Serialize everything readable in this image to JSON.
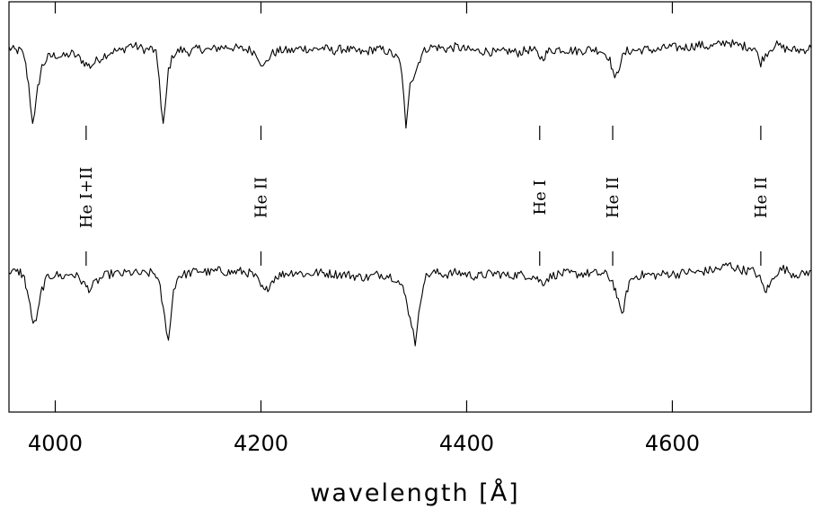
{
  "chart_data": {
    "type": "line",
    "title": "",
    "xlabel": "wavelength [Å]",
    "ylabel": "",
    "xlim": [
      3955,
      4735
    ],
    "ylim": [
      0,
      1
    ],
    "x_ticks": [
      4000,
      4200,
      4400,
      4600
    ],
    "grid": false,
    "series": [
      {
        "points": [
          [
            3955,
            0.887
          ],
          [
            3962,
            0.88
          ],
          [
            3966,
            0.882
          ],
          [
            3970,
            0.865
          ],
          [
            3974,
            0.8
          ],
          [
            3976,
            0.75
          ],
          [
            3978,
            0.71
          ],
          [
            3980,
            0.722
          ],
          [
            3983,
            0.79
          ],
          [
            3987,
            0.842
          ],
          [
            3993,
            0.865
          ],
          [
            4000,
            0.87
          ],
          [
            4008,
            0.866
          ],
          [
            4016,
            0.874
          ],
          [
            4024,
            0.862
          ],
          [
            4030,
            0.848
          ],
          [
            4034,
            0.843
          ],
          [
            4040,
            0.856
          ],
          [
            4048,
            0.87
          ],
          [
            4056,
            0.88
          ],
          [
            4064,
            0.88
          ],
          [
            4072,
            0.895
          ],
          [
            4080,
            0.89
          ],
          [
            4088,
            0.883
          ],
          [
            4094,
            0.886
          ],
          [
            4098,
            0.872
          ],
          [
            4101,
            0.82
          ],
          [
            4103,
            0.74
          ],
          [
            4105,
            0.7
          ],
          [
            4107,
            0.74
          ],
          [
            4110,
            0.835
          ],
          [
            4115,
            0.872
          ],
          [
            4122,
            0.883
          ],
          [
            4130,
            0.878
          ],
          [
            4140,
            0.886
          ],
          [
            4150,
            0.882
          ],
          [
            4160,
            0.889
          ],
          [
            4170,
            0.89
          ],
          [
            4180,
            0.885
          ],
          [
            4190,
            0.883
          ],
          [
            4196,
            0.873
          ],
          [
            4200,
            0.852
          ],
          [
            4202,
            0.838
          ],
          [
            4205,
            0.852
          ],
          [
            4210,
            0.873
          ],
          [
            4220,
            0.882
          ],
          [
            4230,
            0.88
          ],
          [
            4240,
            0.888
          ],
          [
            4250,
            0.883
          ],
          [
            4260,
            0.888
          ],
          [
            4270,
            0.88
          ],
          [
            4280,
            0.886
          ],
          [
            4290,
            0.88
          ],
          [
            4300,
            0.876
          ],
          [
            4310,
            0.885
          ],
          [
            4320,
            0.882
          ],
          [
            4328,
            0.872
          ],
          [
            4334,
            0.858
          ],
          [
            4337,
            0.83
          ],
          [
            4339,
            0.76
          ],
          [
            4341,
            0.685
          ],
          [
            4343,
            0.74
          ],
          [
            4345,
            0.808
          ],
          [
            4348,
            0.818
          ],
          [
            4352,
            0.842
          ],
          [
            4356,
            0.872
          ],
          [
            4362,
            0.888
          ],
          [
            4370,
            0.89
          ],
          [
            4380,
            0.885
          ],
          [
            4390,
            0.89
          ],
          [
            4400,
            0.883
          ],
          [
            4410,
            0.88
          ],
          [
            4420,
            0.88
          ],
          [
            4430,
            0.875
          ],
          [
            4440,
            0.88
          ],
          [
            4450,
            0.876
          ],
          [
            4460,
            0.883
          ],
          [
            4466,
            0.88
          ],
          [
            4470,
            0.87
          ],
          [
            4473,
            0.862
          ],
          [
            4476,
            0.87
          ],
          [
            4480,
            0.88
          ],
          [
            4490,
            0.885
          ],
          [
            4500,
            0.882
          ],
          [
            4510,
            0.88
          ],
          [
            4520,
            0.885
          ],
          [
            4530,
            0.882
          ],
          [
            4538,
            0.867
          ],
          [
            4542,
            0.835
          ],
          [
            4544,
            0.805
          ],
          [
            4546,
            0.822
          ],
          [
            4550,
            0.858
          ],
          [
            4556,
            0.88
          ],
          [
            4566,
            0.882
          ],
          [
            4576,
            0.884
          ],
          [
            4586,
            0.882
          ],
          [
            4596,
            0.89
          ],
          [
            4606,
            0.888
          ],
          [
            4616,
            0.89
          ],
          [
            4626,
            0.895
          ],
          [
            4636,
            0.89
          ],
          [
            4646,
            0.896
          ],
          [
            4654,
            0.904
          ],
          [
            4660,
            0.895
          ],
          [
            4670,
            0.892
          ],
          [
            4680,
            0.888
          ],
          [
            4684,
            0.862
          ],
          [
            4686,
            0.852
          ],
          [
            4689,
            0.866
          ],
          [
            4694,
            0.882
          ],
          [
            4700,
            0.896
          ],
          [
            4708,
            0.887
          ],
          [
            4716,
            0.883
          ],
          [
            4726,
            0.882
          ],
          [
            4735,
            0.888
          ]
        ]
      },
      {
        "points": [
          [
            3955,
            0.345
          ],
          [
            3962,
            0.34
          ],
          [
            3966,
            0.342
          ],
          [
            3970,
            0.325
          ],
          [
            3974,
            0.28
          ],
          [
            3977,
            0.23
          ],
          [
            3980,
            0.215
          ],
          [
            3983,
            0.24
          ],
          [
            3987,
            0.3
          ],
          [
            3993,
            0.33
          ],
          [
            4000,
            0.335
          ],
          [
            4008,
            0.33
          ],
          [
            4016,
            0.338
          ],
          [
            4024,
            0.325
          ],
          [
            4030,
            0.305
          ],
          [
            4034,
            0.3
          ],
          [
            4040,
            0.318
          ],
          [
            4048,
            0.332
          ],
          [
            4056,
            0.338
          ],
          [
            4064,
            0.336
          ],
          [
            4072,
            0.34
          ],
          [
            4080,
            0.338
          ],
          [
            4088,
            0.336
          ],
          [
            4094,
            0.34
          ],
          [
            4098,
            0.335
          ],
          [
            4102,
            0.3
          ],
          [
            4105,
            0.25
          ],
          [
            4108,
            0.205
          ],
          [
            4110,
            0.18
          ],
          [
            4112,
            0.215
          ],
          [
            4115,
            0.3
          ],
          [
            4120,
            0.332
          ],
          [
            4130,
            0.338
          ],
          [
            4140,
            0.345
          ],
          [
            4150,
            0.34
          ],
          [
            4160,
            0.345
          ],
          [
            4170,
            0.34
          ],
          [
            4180,
            0.343
          ],
          [
            4190,
            0.338
          ],
          [
            4196,
            0.325
          ],
          [
            4200,
            0.305
          ],
          [
            4204,
            0.292
          ],
          [
            4208,
            0.31
          ],
          [
            4214,
            0.33
          ],
          [
            4224,
            0.338
          ],
          [
            4234,
            0.342
          ],
          [
            4244,
            0.335
          ],
          [
            4254,
            0.34
          ],
          [
            4264,
            0.338
          ],
          [
            4274,
            0.336
          ],
          [
            4284,
            0.335
          ],
          [
            4294,
            0.33
          ],
          [
            4304,
            0.328
          ],
          [
            4314,
            0.336
          ],
          [
            4324,
            0.333
          ],
          [
            4332,
            0.325
          ],
          [
            4338,
            0.3
          ],
          [
            4342,
            0.268
          ],
          [
            4345,
            0.225
          ],
          [
            4348,
            0.205
          ],
          [
            4350,
            0.17
          ],
          [
            4352,
            0.2
          ],
          [
            4355,
            0.268
          ],
          [
            4358,
            0.318
          ],
          [
            4362,
            0.335
          ],
          [
            4370,
            0.34
          ],
          [
            4380,
            0.335
          ],
          [
            4390,
            0.34
          ],
          [
            4400,
            0.336
          ],
          [
            4410,
            0.33
          ],
          [
            4420,
            0.336
          ],
          [
            4430,
            0.338
          ],
          [
            4440,
            0.332
          ],
          [
            4450,
            0.335
          ],
          [
            4460,
            0.333
          ],
          [
            4466,
            0.33
          ],
          [
            4470,
            0.322
          ],
          [
            4474,
            0.315
          ],
          [
            4478,
            0.325
          ],
          [
            4486,
            0.335
          ],
          [
            4496,
            0.338
          ],
          [
            4506,
            0.336
          ],
          [
            4516,
            0.338
          ],
          [
            4526,
            0.338
          ],
          [
            4536,
            0.335
          ],
          [
            4542,
            0.318
          ],
          [
            4546,
            0.285
          ],
          [
            4549,
            0.248
          ],
          [
            4551,
            0.238
          ],
          [
            4554,
            0.27
          ],
          [
            4558,
            0.318
          ],
          [
            4565,
            0.332
          ],
          [
            4575,
            0.335
          ],
          [
            4585,
            0.333
          ],
          [
            4595,
            0.338
          ],
          [
            4605,
            0.336
          ],
          [
            4615,
            0.342
          ],
          [
            4625,
            0.34
          ],
          [
            4635,
            0.345
          ],
          [
            4645,
            0.348
          ],
          [
            4655,
            0.36
          ],
          [
            4662,
            0.35
          ],
          [
            4672,
            0.345
          ],
          [
            4680,
            0.343
          ],
          [
            4685,
            0.325
          ],
          [
            4690,
            0.295
          ],
          [
            4694,
            0.305
          ],
          [
            4700,
            0.338
          ],
          [
            4708,
            0.35
          ],
          [
            4716,
            0.338
          ],
          [
            4726,
            0.335
          ],
          [
            4735,
            0.345
          ]
        ]
      }
    ],
    "annotations": [
      {
        "label": "He I+II",
        "wavelength": 4030
      },
      {
        "label": "He II",
        "wavelength": 4200
      },
      {
        "label": "He I",
        "wavelength": 4471
      },
      {
        "label": "He II",
        "wavelength": 4542
      },
      {
        "label": "He II",
        "wavelength": 4686
      }
    ]
  }
}
